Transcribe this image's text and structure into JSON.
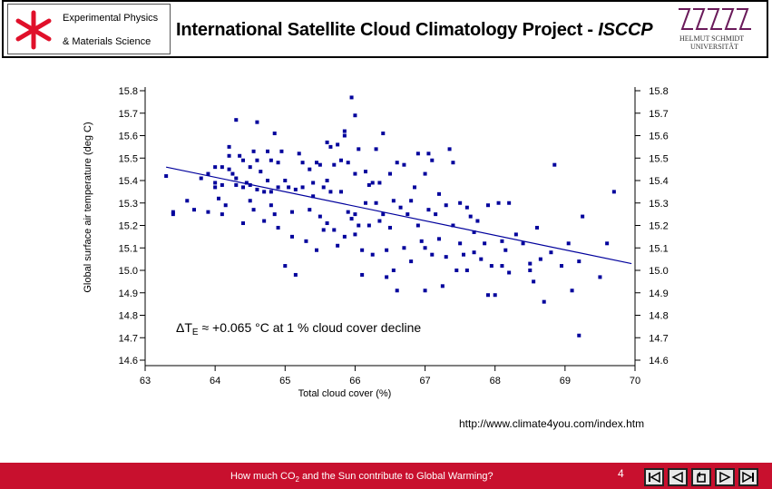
{
  "header": {
    "dept_line1": "Experimental Physics",
    "dept_line2": "& Materials Science",
    "title_main": "International Satellite Cloud Climatology Project - ",
    "title_italic": "ISCCP",
    "university_line1": "HELMUT SCHMIDT",
    "university_line2": "UNIVERSITÄT"
  },
  "chart_data": {
    "type": "scatter",
    "title": "",
    "xlabel": "Total cloud cover (%)",
    "ylabel": "Global surface air temperature (deg C)",
    "xlim": [
      63,
      70
    ],
    "ylim": [
      14.6,
      15.8
    ],
    "x_ticks": [
      "63",
      "64",
      "65",
      "66",
      "67",
      "68",
      "69",
      "70"
    ],
    "y_ticks": [
      "15.8",
      "15.7",
      "15.6",
      "15.5",
      "15.4",
      "15.3",
      "15.2",
      "15.1",
      "15.0",
      "14.9",
      "14.8",
      "14.7",
      "14.6"
    ],
    "annotation_delta": "ΔT",
    "annotation_sub": "E",
    "annotation_rest": " ≈ +0.065 °C at 1 % cloud cover decline",
    "trend": {
      "x1": 63.3,
      "y1": 15.46,
      "x2": 69.95,
      "y2": 15.03
    },
    "points": [
      [
        63.3,
        15.42
      ],
      [
        63.4,
        15.26
      ],
      [
        63.4,
        15.25
      ],
      [
        63.6,
        15.31
      ],
      [
        63.7,
        15.27
      ],
      [
        63.8,
        15.41
      ],
      [
        63.9,
        15.43
      ],
      [
        63.9,
        15.26
      ],
      [
        64.0,
        15.37
      ],
      [
        64.0,
        15.39
      ],
      [
        64.0,
        15.46
      ],
      [
        64.05,
        15.32
      ],
      [
        64.1,
        15.25
      ],
      [
        64.1,
        15.46
      ],
      [
        64.1,
        15.38
      ],
      [
        64.15,
        15.29
      ],
      [
        64.2,
        15.55
      ],
      [
        64.2,
        15.45
      ],
      [
        64.2,
        15.51
      ],
      [
        64.25,
        15.43
      ],
      [
        64.3,
        15.67
      ],
      [
        64.3,
        15.41
      ],
      [
        64.3,
        15.38
      ],
      [
        64.35,
        15.51
      ],
      [
        64.4,
        15.49
      ],
      [
        64.4,
        15.37
      ],
      [
        64.4,
        15.21
      ],
      [
        64.45,
        15.39
      ],
      [
        64.5,
        15.31
      ],
      [
        64.5,
        15.46
      ],
      [
        64.5,
        15.38
      ],
      [
        64.55,
        15.53
      ],
      [
        64.55,
        15.27
      ],
      [
        64.6,
        15.36
      ],
      [
        64.6,
        15.49
      ],
      [
        64.6,
        15.66
      ],
      [
        64.65,
        15.44
      ],
      [
        64.7,
        15.35
      ],
      [
        64.7,
        15.22
      ],
      [
        64.75,
        15.4
      ],
      [
        64.75,
        15.53
      ],
      [
        64.8,
        15.35
      ],
      [
        64.8,
        15.29
      ],
      [
        64.8,
        15.49
      ],
      [
        64.85,
        15.61
      ],
      [
        64.85,
        15.25
      ],
      [
        64.9,
        15.19
      ],
      [
        64.9,
        15.48
      ],
      [
        64.9,
        15.37
      ],
      [
        64.95,
        15.53
      ],
      [
        65.0,
        15.4
      ],
      [
        65.0,
        15.02
      ],
      [
        65.05,
        15.37
      ],
      [
        65.1,
        15.26
      ],
      [
        65.1,
        15.15
      ],
      [
        65.15,
        15.36
      ],
      [
        65.15,
        14.98
      ],
      [
        65.2,
        15.52
      ],
      [
        65.25,
        15.37
      ],
      [
        65.25,
        15.48
      ],
      [
        65.3,
        15.13
      ],
      [
        65.35,
        15.45
      ],
      [
        65.35,
        15.27
      ],
      [
        65.4,
        15.39
      ],
      [
        65.4,
        15.33
      ],
      [
        65.45,
        15.48
      ],
      [
        65.45,
        15.09
      ],
      [
        65.5,
        15.47
      ],
      [
        65.5,
        15.24
      ],
      [
        65.55,
        15.37
      ],
      [
        65.55,
        15.18
      ],
      [
        65.6,
        15.4
      ],
      [
        65.6,
        15.57
      ],
      [
        65.6,
        15.21
      ],
      [
        65.65,
        15.35
      ],
      [
        65.65,
        15.55
      ],
      [
        65.7,
        15.18
      ],
      [
        65.7,
        15.47
      ],
      [
        65.75,
        15.11
      ],
      [
        65.75,
        15.56
      ],
      [
        65.8,
        15.49
      ],
      [
        65.8,
        15.35
      ],
      [
        65.85,
        15.6
      ],
      [
        65.85,
        15.62
      ],
      [
        65.85,
        15.15
      ],
      [
        65.9,
        15.48
      ],
      [
        65.9,
        15.26
      ],
      [
        65.95,
        15.77
      ],
      [
        65.95,
        15.23
      ],
      [
        66.0,
        15.16
      ],
      [
        66.0,
        15.25
      ],
      [
        66.0,
        15.43
      ],
      [
        66.0,
        15.69
      ],
      [
        66.05,
        15.54
      ],
      [
        66.05,
        15.2
      ],
      [
        66.1,
        15.09
      ],
      [
        66.1,
        14.98
      ],
      [
        66.15,
        15.44
      ],
      [
        66.15,
        15.3
      ],
      [
        66.2,
        15.38
      ],
      [
        66.2,
        15.2
      ],
      [
        66.25,
        15.39
      ],
      [
        66.25,
        15.07
      ],
      [
        66.3,
        15.54
      ],
      [
        66.3,
        15.3
      ],
      [
        66.35,
        15.22
      ],
      [
        66.35,
        15.39
      ],
      [
        66.4,
        15.25
      ],
      [
        66.4,
        15.61
      ],
      [
        66.45,
        15.09
      ],
      [
        66.45,
        14.97
      ],
      [
        66.5,
        15.43
      ],
      [
        66.5,
        15.19
      ],
      [
        66.55,
        15.31
      ],
      [
        66.55,
        15.0
      ],
      [
        66.6,
        15.48
      ],
      [
        66.6,
        14.91
      ],
      [
        66.65,
        15.28
      ],
      [
        66.7,
        15.1
      ],
      [
        66.7,
        15.47
      ],
      [
        66.75,
        15.25
      ],
      [
        66.8,
        15.31
      ],
      [
        66.8,
        15.04
      ],
      [
        66.85,
        15.37
      ],
      [
        66.9,
        15.2
      ],
      [
        66.9,
        15.52
      ],
      [
        66.95,
        15.13
      ],
      [
        67.0,
        15.43
      ],
      [
        67.0,
        15.1
      ],
      [
        67.0,
        14.91
      ],
      [
        67.05,
        15.27
      ],
      [
        67.05,
        15.52
      ],
      [
        67.1,
        15.07
      ],
      [
        67.1,
        15.49
      ],
      [
        67.15,
        15.25
      ],
      [
        67.2,
        15.14
      ],
      [
        67.2,
        15.34
      ],
      [
        67.25,
        14.93
      ],
      [
        67.3,
        15.29
      ],
      [
        67.3,
        15.06
      ],
      [
        67.35,
        15.54
      ],
      [
        67.4,
        15.48
      ],
      [
        67.4,
        15.2
      ],
      [
        67.45,
        15.0
      ],
      [
        67.5,
        15.3
      ],
      [
        67.5,
        15.12
      ],
      [
        67.55,
        15.07
      ],
      [
        67.6,
        15.28
      ],
      [
        67.6,
        15.0
      ],
      [
        67.65,
        15.24
      ],
      [
        67.7,
        15.17
      ],
      [
        67.7,
        15.08
      ],
      [
        67.75,
        15.22
      ],
      [
        67.8,
        15.05
      ],
      [
        67.85,
        15.12
      ],
      [
        67.9,
        14.89
      ],
      [
        67.9,
        15.29
      ],
      [
        67.95,
        15.02
      ],
      [
        68.0,
        14.89
      ],
      [
        68.05,
        15.3
      ],
      [
        68.1,
        15.13
      ],
      [
        68.1,
        15.02
      ],
      [
        68.15,
        15.09
      ],
      [
        68.2,
        15.3
      ],
      [
        68.2,
        14.99
      ],
      [
        68.3,
        15.16
      ],
      [
        68.4,
        15.12
      ],
      [
        68.5,
        15.03
      ],
      [
        68.5,
        15.0
      ],
      [
        68.55,
        14.95
      ],
      [
        68.6,
        15.19
      ],
      [
        68.65,
        15.05
      ],
      [
        68.7,
        14.86
      ],
      [
        68.8,
        15.08
      ],
      [
        68.85,
        15.47
      ],
      [
        68.95,
        15.02
      ],
      [
        69.05,
        15.12
      ],
      [
        69.1,
        14.91
      ],
      [
        69.2,
        15.04
      ],
      [
        69.2,
        14.71
      ],
      [
        69.25,
        15.24
      ],
      [
        69.5,
        14.97
      ],
      [
        69.6,
        15.12
      ],
      [
        69.7,
        15.35
      ]
    ]
  },
  "source_url": "http://www.climate4you.com/index.htm",
  "footer": {
    "text_pre": "How much CO",
    "text_sub": "2",
    "text_post": " and the Sun contribute to Global Warming?",
    "page_number": "4"
  },
  "colors": {
    "marker": "#00009c",
    "trend": "#00009c",
    "footer_bg": "#c8102e",
    "logo_red": "#e0102a",
    "hsu_purple": "#6a1a5a"
  }
}
